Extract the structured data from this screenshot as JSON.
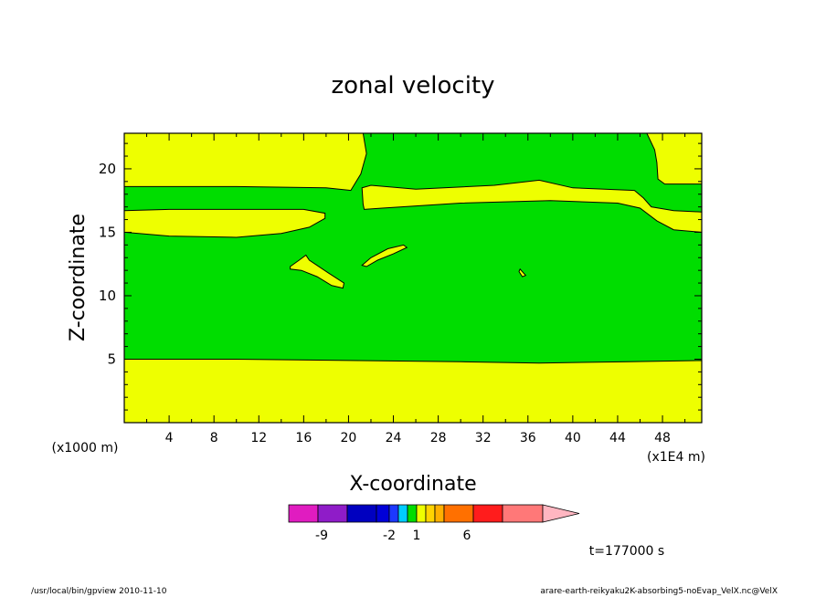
{
  "chart_data": {
    "type": "heatmap",
    "title": "zonal velocity",
    "xlabel": "X-coordinate",
    "ylabel": "Z-coordinate",
    "x_units": "(x1E4 m)",
    "y_units": "(x1000 m)",
    "xlim": [
      0,
      51.5
    ],
    "ylim": [
      0,
      22.8
    ],
    "x_ticks": [
      4,
      8,
      12,
      16,
      20,
      24,
      28,
      32,
      36,
      40,
      44,
      48
    ],
    "y_ticks": [
      5,
      10,
      15,
      20
    ],
    "background_level": {
      "color": "#00dd00",
      "range": [
        0,
        1
      ]
    },
    "regions": [
      {
        "name": "lower-yellow-layer",
        "color": "#eeff00",
        "points": [
          [
            0,
            0
          ],
          [
            51.5,
            0
          ],
          [
            51.5,
            4.9
          ],
          [
            45,
            4.8
          ],
          [
            37,
            4.7
          ],
          [
            30,
            4.8
          ],
          [
            20,
            4.9
          ],
          [
            10,
            5.0
          ],
          [
            0,
            5.0
          ]
        ]
      },
      {
        "name": "upper-yellow-band-left",
        "color": "#eeff00",
        "points": [
          [
            0,
            15.0
          ],
          [
            4,
            14.7
          ],
          [
            10,
            14.6
          ],
          [
            14,
            14.9
          ],
          [
            16.5,
            15.4
          ],
          [
            17.9,
            16.1
          ],
          [
            17.9,
            16.5
          ],
          [
            16,
            16.8
          ],
          [
            10,
            16.8
          ],
          [
            4,
            16.8
          ],
          [
            0,
            16.7
          ]
        ]
      },
      {
        "name": "upper-yellow-band-right",
        "color": "#eeff00",
        "points": [
          [
            21.3,
            17.2
          ],
          [
            21.4,
            16.8
          ],
          [
            23,
            16.9
          ],
          [
            30,
            17.3
          ],
          [
            38,
            17.5
          ],
          [
            44,
            17.3
          ],
          [
            46,
            16.9
          ],
          [
            47.5,
            15.9
          ],
          [
            49,
            15.2
          ],
          [
            51.5,
            15.0
          ],
          [
            51.5,
            16.6
          ],
          [
            49,
            16.7
          ],
          [
            47,
            17.0
          ],
          [
            46.3,
            17.7
          ],
          [
            45.5,
            18.3
          ],
          [
            40,
            18.5
          ],
          [
            37,
            19.1
          ],
          [
            33,
            18.7
          ],
          [
            26,
            18.4
          ],
          [
            22,
            18.7
          ],
          [
            21.2,
            18.5
          ]
        ]
      },
      {
        "name": "top-yellow-layer-left",
        "color": "#eeff00",
        "points": [
          [
            0,
            18.6
          ],
          [
            10,
            18.6
          ],
          [
            18,
            18.5
          ],
          [
            20.2,
            18.3
          ],
          [
            21.1,
            19.6
          ],
          [
            21.6,
            21.2
          ],
          [
            21.3,
            22.8
          ],
          [
            0,
            22.8
          ]
        ]
      },
      {
        "name": "top-yellow-layer-right",
        "color": "#eeff00",
        "points": [
          [
            46.6,
            22.8
          ],
          [
            47.3,
            21.5
          ],
          [
            47.5,
            20.5
          ],
          [
            47.6,
            19.2
          ],
          [
            48.2,
            18.8
          ],
          [
            51.5,
            18.8
          ],
          [
            51.5,
            22.8
          ]
        ]
      },
      {
        "name": "yellow-patch-lower-left",
        "color": "#eeff00",
        "points": [
          [
            14.8,
            12.3
          ],
          [
            15.6,
            12.8
          ],
          [
            16.2,
            13.2
          ],
          [
            16.5,
            12.8
          ],
          [
            18.2,
            11.8
          ],
          [
            19.6,
            11.0
          ],
          [
            19.5,
            10.6
          ],
          [
            18.5,
            10.8
          ],
          [
            17.2,
            11.5
          ],
          [
            15.8,
            12.0
          ],
          [
            14.8,
            12.1
          ]
        ]
      },
      {
        "name": "yellow-patch-center",
        "color": "#eeff00",
        "points": [
          [
            21.2,
            12.4
          ],
          [
            22,
            13.0
          ],
          [
            23.5,
            13.7
          ],
          [
            24.9,
            14.0
          ],
          [
            25.2,
            13.8
          ],
          [
            24,
            13.3
          ],
          [
            22.6,
            12.8
          ],
          [
            21.6,
            12.3
          ]
        ]
      },
      {
        "name": "yellow-speck",
        "color": "#eeff00",
        "points": [
          [
            35.3,
            12.1
          ],
          [
            35.8,
            11.6
          ],
          [
            35.5,
            11.5
          ],
          [
            35.2,
            11.9
          ]
        ]
      }
    ],
    "colorbar": {
      "colors": [
        "#e01cc0",
        "#8f1cc8",
        "#0000c0",
        "#0000d8",
        "#1c38ff",
        "#00ccff",
        "#00dd00",
        "#eeff00",
        "#ffd400",
        "#ffb000",
        "#ff7000",
        "#ff1c1c",
        "#ff7878",
        "#ffb6c1"
      ],
      "tick_labels": [
        "-9",
        "-2",
        "1",
        "6"
      ]
    },
    "time_label": "t=177000 s"
  },
  "footer": {
    "left": "/usr/local/bin/gpview  2010-11-10",
    "right": "arare-earth-reikyaku2K-absorbing5-noEvap_VelX.nc@VelX"
  }
}
